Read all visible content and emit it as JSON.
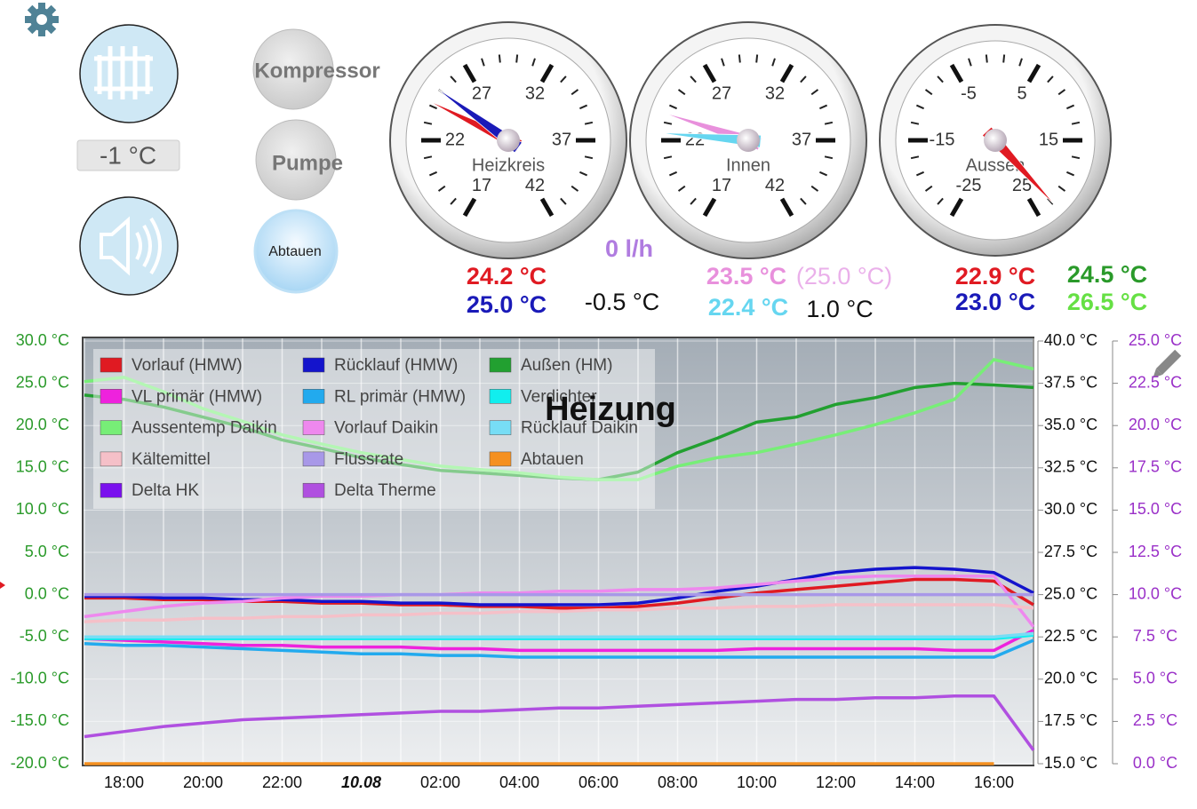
{
  "controls": {
    "temp_display": "-1 °C",
    "buttons": [
      "Kompressor",
      "Pumpe",
      "Abtauen"
    ]
  },
  "gauges": [
    {
      "label": "Heizkreis",
      "ticks": [
        17,
        22,
        27,
        32,
        37,
        42
      ],
      "values": [
        24.2,
        25.0
      ],
      "value_labels": [
        "24.2 °C",
        "25.0 °C"
      ],
      "colors": [
        "#e01a22",
        "#1a1ab8"
      ]
    },
    {
      "label": "Innen",
      "ticks": [
        17,
        22,
        27,
        32,
        37,
        42
      ],
      "values": [
        23.5,
        22.4
      ],
      "value_labels": [
        "23.5 °C",
        "22.4 °C"
      ],
      "colors": [
        "#e890dc",
        "#66d6f0"
      ]
    },
    {
      "label": "Aussen",
      "ticks": [
        -25,
        -15,
        -5,
        5,
        15,
        25
      ],
      "values": [
        22.9
      ],
      "value_labels": [
        "22.9 °C"
      ],
      "colors": [
        "#e01a22"
      ]
    }
  ],
  "readings": [
    {
      "text": "-0.5 °C",
      "color": "#111111"
    },
    {
      "text": "0 l/h",
      "color": "#b07ce0"
    },
    {
      "text": "(25.0 °C)",
      "color": "#eab0ea"
    },
    {
      "text": "1.0 °C",
      "color": "#111111"
    },
    {
      "text": "23.0 °C",
      "color": "#1a1ab8"
    },
    {
      "text": "24.5 °C",
      "color": "#2a9a2a"
    },
    {
      "text": "26.5 °C",
      "color": "#66e044"
    }
  ],
  "chart_data": {
    "type": "line",
    "title": "Heizung",
    "grid": true,
    "categories": [
      null,
      "18:00",
      null,
      "20:00",
      null,
      "22:00",
      null,
      "10.08",
      null,
      "02:00",
      null,
      "04:00",
      null,
      "06:00",
      null,
      "08:00",
      null,
      "10:00",
      null,
      "12:00",
      null,
      "14:00",
      null,
      "16:00",
      null
    ],
    "ylim": [
      -20,
      30
    ],
    "yticks": [
      {
        "value": 30,
        "label": "30.0 °C"
      },
      {
        "value": 25,
        "label": "25.0 °C"
      },
      {
        "value": 20,
        "label": "20.0 °C"
      },
      {
        "value": 15,
        "label": "15.0 °C"
      },
      {
        "value": 10,
        "label": "10.0 °C"
      },
      {
        "value": 5,
        "label": "5.0 °C"
      },
      {
        "value": 0,
        "label": "0.0 °C"
      },
      {
        "value": -5,
        "label": "-5.0 °C"
      },
      {
        "value": -10,
        "label": "-10.0 °C"
      },
      {
        "value": -15,
        "label": "-15.0 °C"
      },
      {
        "value": -20,
        "label": "-20.0 °C"
      }
    ],
    "y2lim": [
      15,
      40
    ],
    "y2ticks": [
      {
        "value": 40,
        "label": "40.0 °C"
      },
      {
        "value": 37.5,
        "label": "37.5 °C"
      },
      {
        "value": 35,
        "label": "35.0 °C"
      },
      {
        "value": 32.5,
        "label": "32.5 °C"
      },
      {
        "value": 30,
        "label": "30.0 °C"
      },
      {
        "value": 27.5,
        "label": "27.5 °C"
      },
      {
        "value": 25,
        "label": "25.0 °C"
      },
      {
        "value": 22.5,
        "label": "22.5 °C"
      },
      {
        "value": 20,
        "label": "20.0 °C"
      },
      {
        "value": 17.5,
        "label": "17.5 °C"
      },
      {
        "value": 15,
        "label": "15.0 °C"
      }
    ],
    "y3lim": [
      0,
      25
    ],
    "y3ticks": [
      {
        "value": 25,
        "label": "25.0 °C"
      },
      {
        "value": 22.5,
        "label": "22.5 °C"
      },
      {
        "value": 20,
        "label": "20.0 °C"
      },
      {
        "value": 17.5,
        "label": "17.5 °C"
      },
      {
        "value": 15,
        "label": "15.0 °C"
      },
      {
        "value": 12.5,
        "label": "12.5 °C"
      },
      {
        "value": 10,
        "label": "10.0 °C"
      },
      {
        "value": 7.5,
        "label": "7.5 °C"
      },
      {
        "value": 5,
        "label": "5.0 °C"
      },
      {
        "value": 2.5,
        "label": "2.5 °C"
      },
      {
        "value": 0,
        "label": "0.0 °C"
      }
    ],
    "series": [
      {
        "name": "Vorlauf (HMW)",
        "color": "#e01a22",
        "axis": "y2",
        "values": [
          24.8,
          24.8,
          24.7,
          24.7,
          24.6,
          24.6,
          24.5,
          24.5,
          24.4,
          24.4,
          24.3,
          24.3,
          24.2,
          24.2,
          24.3,
          24.5,
          24.8,
          25.1,
          25.3,
          25.5,
          25.7,
          25.9,
          25.9,
          25.8,
          24.4
        ]
      },
      {
        "name": "Rücklauf (HMW)",
        "color": "#1414cc",
        "axis": "y2",
        "values": [
          24.9,
          24.9,
          24.8,
          24.8,
          24.7,
          24.7,
          24.6,
          24.6,
          24.5,
          24.5,
          24.4,
          24.4,
          24.4,
          24.4,
          24.5,
          24.8,
          25.2,
          25.5,
          25.9,
          26.3,
          26.5,
          26.6,
          26.5,
          26.3,
          25.1
        ]
      },
      {
        "name": "Außen (HM)",
        "color": "#22a030",
        "values": [
          23.6,
          23.1,
          22.2,
          21.0,
          19.8,
          18.3,
          17.3,
          16.2,
          15.4,
          14.7,
          14.4,
          14.1,
          13.8,
          13.6,
          14.5,
          16.8,
          18.5,
          20.4,
          21.0,
          22.5,
          23.3,
          24.5,
          25.0,
          24.8,
          24.5
        ]
      },
      {
        "name": "VL primär (HMW)",
        "color": "#ee22dd",
        "axis": "y2",
        "values": [
          22.4,
          22.3,
          22.2,
          22.1,
          22.0,
          22.0,
          21.9,
          21.9,
          21.9,
          21.8,
          21.8,
          21.7,
          21.7,
          21.7,
          21.7,
          21.7,
          21.7,
          21.8,
          21.8,
          21.8,
          21.8,
          21.8,
          21.7,
          21.7,
          22.9
        ]
      },
      {
        "name": "RL primär (HMW)",
        "color": "#22aaee",
        "axis": "y2",
        "values": [
          22.1,
          22.0,
          22.0,
          21.9,
          21.8,
          21.7,
          21.6,
          21.5,
          21.5,
          21.4,
          21.4,
          21.3,
          21.3,
          21.3,
          21.3,
          21.3,
          21.3,
          21.3,
          21.3,
          21.3,
          21.3,
          21.3,
          21.3,
          21.3,
          22.3
        ]
      },
      {
        "name": "Verdichter",
        "color": "#11eeee",
        "axis": "y2",
        "values": [
          22.4,
          22.4,
          22.4,
          22.4,
          22.4,
          22.4,
          22.4,
          22.4,
          22.4,
          22.4,
          22.4,
          22.4,
          22.4,
          22.4,
          22.4,
          22.4,
          22.4,
          22.4,
          22.4,
          22.4,
          22.4,
          22.4,
          22.4,
          22.4,
          22.6
        ]
      },
      {
        "name": "Aussentemp Daikin",
        "color": "#77ee77",
        "values": [
          25.2,
          25.7,
          24.0,
          22.0,
          20.5,
          18.9,
          17.8,
          16.8,
          16.0,
          15.2,
          14.8,
          14.4,
          13.9,
          13.6,
          13.6,
          15.2,
          16.2,
          16.8,
          17.8,
          18.9,
          20.1,
          21.5,
          23.1,
          27.8,
          26.7
        ]
      },
      {
        "name": "Vorlauf Daikin",
        "color": "#ee88ee",
        "axis": "y2",
        "values": [
          23.7,
          24.0,
          24.3,
          24.5,
          24.6,
          24.8,
          24.9,
          24.9,
          25.0,
          25.0,
          25.1,
          25.1,
          25.2,
          25.2,
          25.3,
          25.3,
          25.4,
          25.6,
          25.8,
          26.0,
          26.1,
          26.1,
          26.1,
          26.1,
          23.1
        ]
      },
      {
        "name": "Rücklauf Daikin",
        "color": "#77ddf5",
        "axis": "y2",
        "values": [
          22.5,
          22.5,
          22.5,
          22.5,
          22.5,
          22.5,
          22.5,
          22.5,
          22.5,
          22.5,
          22.5,
          22.5,
          22.5,
          22.5,
          22.5,
          22.5,
          22.5,
          22.5,
          22.5,
          22.5,
          22.5,
          22.5,
          22.5,
          22.5,
          22.7
        ]
      },
      {
        "name": "Kältemittel",
        "color": "#f5c0c8",
        "axis": "y2",
        "values": [
          23.4,
          23.5,
          23.5,
          23.6,
          23.6,
          23.7,
          23.7,
          23.8,
          23.8,
          23.9,
          23.9,
          24.0,
          24.0,
          24.1,
          24.1,
          24.2,
          24.2,
          24.3,
          24.3,
          24.4,
          24.4,
          24.4,
          24.4,
          24.4,
          24.2
        ]
      },
      {
        "name": "Flussrate",
        "color": "#a898e8",
        "axis": "y3",
        "values": [
          10,
          10,
          10,
          10,
          10,
          10,
          10,
          10,
          10,
          10,
          10,
          10,
          10,
          10,
          10,
          10,
          10,
          10,
          10,
          10,
          10,
          10,
          10,
          10,
          10
        ]
      },
      {
        "name": "Abtauen",
        "color": "#f59020",
        "axis": "y3",
        "values": [
          0,
          0,
          0,
          0,
          0,
          0,
          0,
          0,
          0,
          0,
          0,
          0,
          0,
          0,
          0,
          0,
          0,
          0,
          0,
          0,
          0,
          0,
          0,
          0,
          null
        ]
      },
      {
        "name": "Delta HK",
        "color": "#7a10ee",
        "axis": "y3",
        "values": [
          null,
          null,
          null,
          null,
          null,
          null,
          null,
          null,
          null,
          null,
          null,
          null,
          null,
          null,
          null,
          null,
          null,
          null,
          null,
          null,
          null,
          null,
          null,
          null,
          null
        ]
      },
      {
        "name": "Delta Therme",
        "color": "#b050e0",
        "axis": "y3",
        "values": [
          1.6,
          1.9,
          2.2,
          2.4,
          2.6,
          2.7,
          2.8,
          2.9,
          3.0,
          3.1,
          3.1,
          3.2,
          3.3,
          3.3,
          3.4,
          3.5,
          3.6,
          3.7,
          3.8,
          3.8,
          3.9,
          3.9,
          4.0,
          4.0,
          0.8
        ]
      }
    ]
  }
}
